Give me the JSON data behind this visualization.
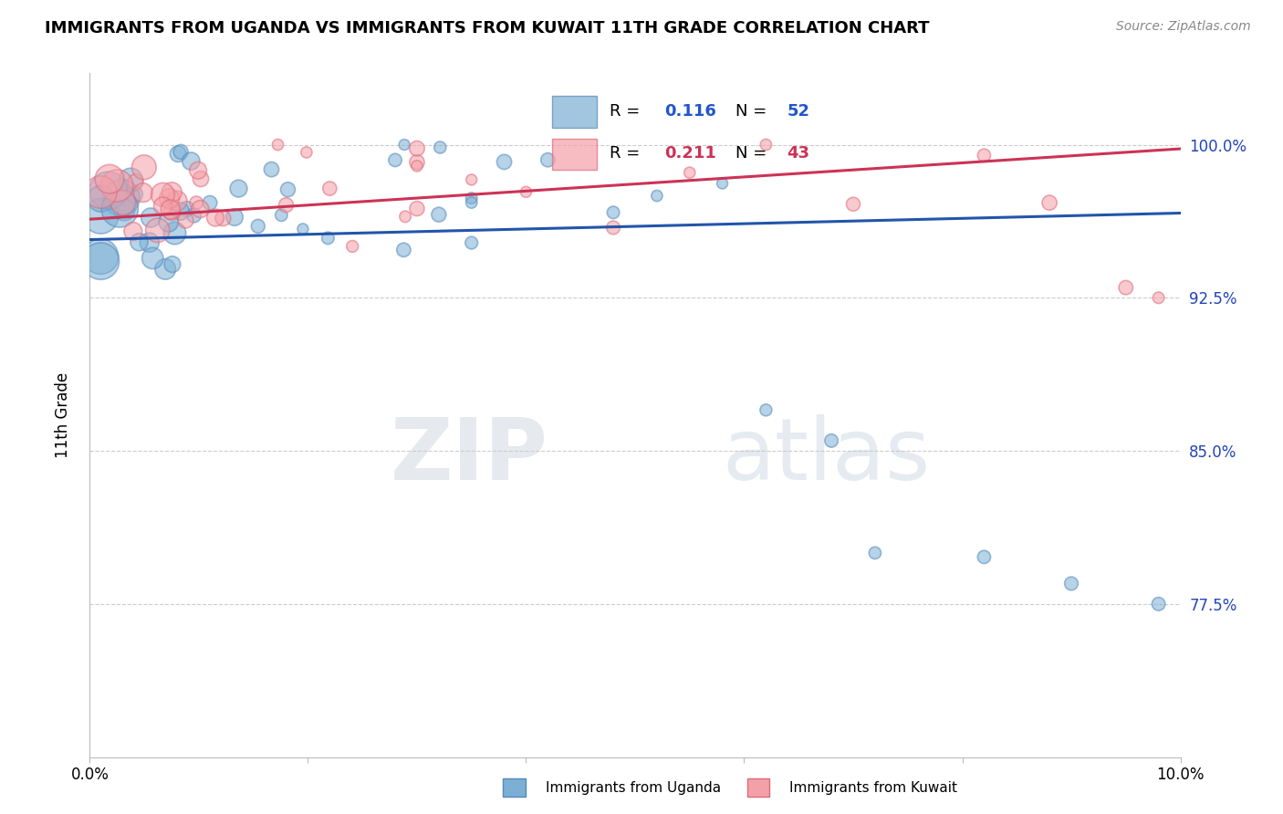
{
  "title": "IMMIGRANTS FROM UGANDA VS IMMIGRANTS FROM KUWAIT 11TH GRADE CORRELATION CHART",
  "source": "Source: ZipAtlas.com",
  "ylabel": "11th Grade",
  "y_tick_labels": [
    "100.0%",
    "92.5%",
    "85.0%",
    "77.5%"
  ],
  "y_tick_values": [
    1.0,
    0.925,
    0.85,
    0.775
  ],
  "xlim": [
    0.0,
    0.1
  ],
  "ylim": [
    0.7,
    1.035
  ],
  "R_uganda": "0.116",
  "N_uganda": "52",
  "R_kuwait": "0.211",
  "N_kuwait": "43",
  "color_uganda": "#7BAFD4",
  "color_kuwait": "#F4A0A8",
  "color_uganda_edge": "#5588BB",
  "color_kuwait_edge": "#E06878",
  "trendline_uganda_color": "#2255AA",
  "trendline_kuwait_color": "#CC3355",
  "legend_R_color_uganda": "#2255CC",
  "legend_N_color_uganda": "#2255CC",
  "legend_R_color_kuwait": "#CC3355",
  "legend_N_color_kuwait": "#CC3355",
  "right_axis_color": "#2244BB",
  "watermark_color": "#D0DCE8",
  "background_color": "#FFFFFF",
  "grid_color": "#CCCCCC",
  "uganda_trend_y0": 0.9535,
  "uganda_trend_y1": 0.9665,
  "kuwait_trend_y0": 0.9635,
  "kuwait_trend_y1": 0.998
}
